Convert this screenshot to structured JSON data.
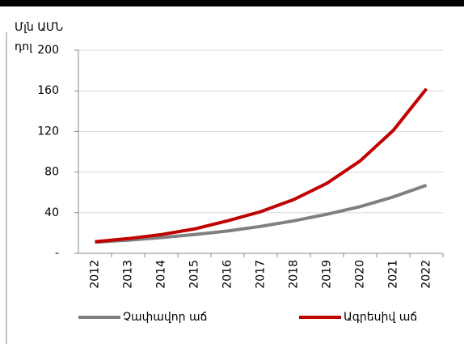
{
  "chart_data": {
    "type": "line",
    "y_label": [
      "Մլն ԱՄՆ",
      "դոլար"
    ],
    "categories": [
      "2012",
      "2013",
      "2014",
      "2015",
      "2016",
      "2017",
      "2018",
      "2019",
      "2020",
      "2021",
      "2022"
    ],
    "series": [
      {
        "name": "Չափավոր աճ",
        "color": "#808080",
        "values": [
          11,
          13,
          15.5,
          18.5,
          22,
          26.5,
          32,
          38.5,
          46,
          55.5,
          67
        ]
      },
      {
        "name": "Ագրեսիվ աճ",
        "color": "#c00000",
        "values": [
          11.5,
          14.5,
          18.5,
          24,
          32,
          41,
          53,
          69,
          91,
          121,
          162
        ]
      }
    ],
    "ylim": [
      0,
      200
    ],
    "yticks": [
      {
        "value": 0,
        "label": "-"
      },
      40,
      80,
      120,
      160,
      200
    ],
    "grid": true,
    "legend": "bottom"
  }
}
